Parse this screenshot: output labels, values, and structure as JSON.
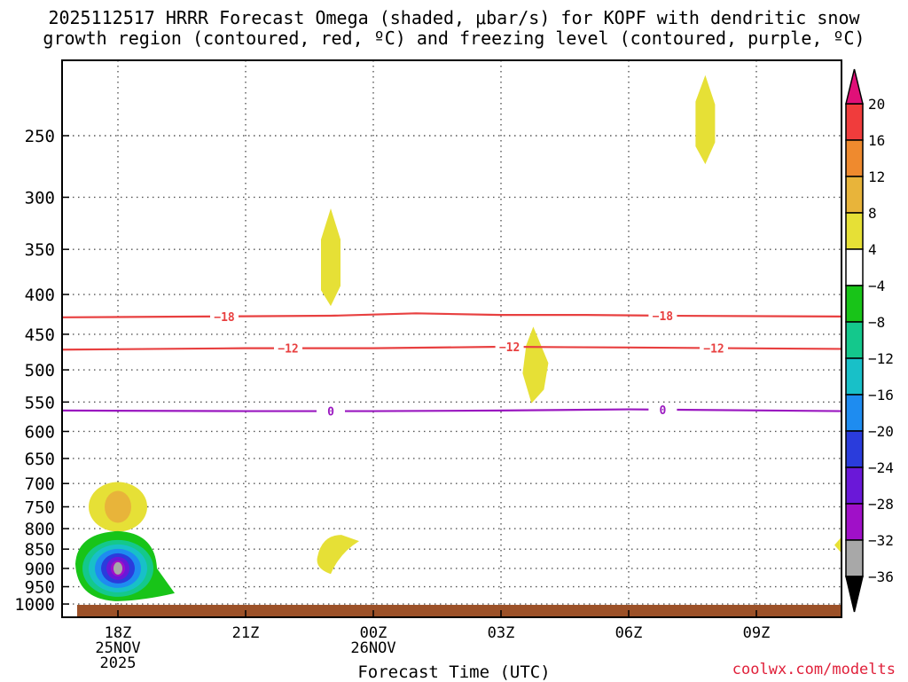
{
  "title": {
    "line1": "2025112517 HRRR Forecast Omega (shaded, μbar/s) for KOPF with dendritic snow",
    "line2": "growth region (contoured, red, ºC) and freezing level (contoured, purple, ºC)"
  },
  "credit": "coolwx.com/modelts",
  "chart_data": {
    "type": "contour-shaded time-height cross section",
    "title": "2025112517 HRRR Forecast Omega (shaded, μbar/s) for KOPF with dendritic snow growth region (contoured, red, ºC) and freezing level (contoured, purple, ºC)",
    "xlabel": "Forecast Time (UTC)",
    "ylabel": "",
    "x_ticks": [
      {
        "label": "18Z",
        "sub": [
          "25NOV",
          "2025"
        ],
        "hours": 1
      },
      {
        "label": "21Z",
        "sub": [],
        "hours": 4
      },
      {
        "label": "00Z",
        "sub": [
          "26NOV"
        ],
        "hours": 7
      },
      {
        "label": "03Z",
        "sub": [],
        "hours": 10
      },
      {
        "label": "06Z",
        "sub": [],
        "hours": 13
      },
      {
        "label": "09Z",
        "sub": [],
        "hours": 16
      }
    ],
    "xlim_hours": [
      0,
      18
    ],
    "y_axis": "pressure (hPa), log scale, inverted",
    "ylim": [
      1040,
      200
    ],
    "y_ticks": [
      250,
      300,
      350,
      400,
      450,
      500,
      550,
      600,
      650,
      700,
      750,
      800,
      850,
      900,
      950,
      1000
    ],
    "grid": true,
    "colorbar": {
      "levels": [
        "20",
        "16",
        "12",
        "8",
        "4",
        "−4",
        "−8",
        "−12",
        "−16",
        "−20",
        "−24",
        "−28",
        "−32",
        "−36"
      ],
      "bands": [
        {
          "from": 16,
          "to": 20,
          "color": "#f03c3c"
        },
        {
          "from": 12,
          "to": 16,
          "color": "#ef8a2e"
        },
        {
          "from": 8,
          "to": 12,
          "color": "#e8b43a"
        },
        {
          "from": 4,
          "to": 8,
          "color": "#e6e036"
        },
        {
          "from": -4,
          "to": 4,
          "color": "#ffffff"
        },
        {
          "from": -8,
          "to": -4,
          "color": "#18c418"
        },
        {
          "from": -12,
          "to": -8,
          "color": "#14c88c"
        },
        {
          "from": -16,
          "to": -12,
          "color": "#18c0c8"
        },
        {
          "from": -20,
          "to": -16,
          "color": "#1e8cf0"
        },
        {
          "from": -24,
          "to": -20,
          "color": "#2a3cdc"
        },
        {
          "from": -28,
          "to": -24,
          "color": "#6a18d8"
        },
        {
          "from": -32,
          "to": -28,
          "color": "#a010c8"
        },
        {
          "from": -36,
          "to": -32,
          "color": "#a8a8a8"
        }
      ],
      "over_color": "#e01078",
      "under_color": "#000000"
    },
    "contours": [
      {
        "value": "-18",
        "color": "#e84040",
        "points": [
          [
            0,
            428
          ],
          [
            3,
            427
          ],
          [
            6,
            426
          ],
          [
            8,
            423
          ],
          [
            10,
            425
          ],
          [
            12,
            425
          ],
          [
            14,
            426
          ],
          [
            18,
            427
          ]
        ],
        "labels_hours": [
          3.5,
          13.8
        ]
      },
      {
        "value": "-12",
        "color": "#e84040",
        "points": [
          [
            0,
            471
          ],
          [
            4,
            469
          ],
          [
            7,
            469
          ],
          [
            10,
            467
          ],
          [
            13,
            468
          ],
          [
            18,
            470
          ]
        ],
        "labels_hours": [
          5,
          10.2,
          15
        ]
      },
      {
        "value": "0",
        "color": "#9a18c0",
        "points": [
          [
            0,
            564
          ],
          [
            4,
            565
          ],
          [
            7,
            565
          ],
          [
            10,
            564
          ],
          [
            13,
            562
          ],
          [
            18,
            565
          ]
        ],
        "labels_hours": [
          6,
          13.8
        ]
      }
    ],
    "omega_features": [
      {
        "name": "ascent-core-950mb",
        "hours": 1,
        "pressure": 900,
        "min_value": "below -32"
      },
      {
        "name": "descent-750mb",
        "hours": 1,
        "pressure": 750,
        "max_value": "8 to 12"
      },
      {
        "name": "descent-350mb",
        "hours": 6,
        "pressure": 360,
        "max_value": "4 to 8"
      },
      {
        "name": "descent-850mb",
        "hours": 6,
        "pressure": 860,
        "max_value": "4 to 8"
      },
      {
        "name": "descent-500mb",
        "hours": 10.8,
        "pressure": 490,
        "max_value": "4 to 8"
      },
      {
        "name": "descent-250mb",
        "hours": 14.8,
        "pressure": 245,
        "max_value": "4 to 8"
      }
    ],
    "surface_color": "#9c5128"
  }
}
